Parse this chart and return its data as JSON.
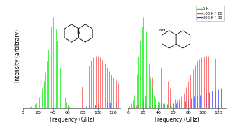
{
  "xlabel": "Frequency (GHz)",
  "ylabel": "Intensity (arbitrary)",
  "legend_labels": [
    "5 K",
    "100 K * 20",
    "300 K * 80"
  ],
  "legend_colors": [
    "#00ee00",
    "#ff4444",
    "#3333ff"
  ],
  "background_color": "#ffffff",
  "mol1_green_freqs": [
    2,
    4,
    6,
    8,
    10,
    12,
    14,
    16,
    18,
    20,
    22,
    24,
    26,
    28,
    30,
    32,
    34,
    36,
    38,
    40,
    42,
    44,
    46,
    48,
    50,
    52,
    54,
    56,
    58,
    60,
    62,
    64,
    66
  ],
  "mol1_green_ints": [
    0.005,
    0.007,
    0.01,
    0.013,
    0.018,
    0.025,
    0.035,
    0.048,
    0.065,
    0.085,
    0.12,
    0.16,
    0.22,
    0.3,
    0.4,
    0.52,
    0.65,
    0.78,
    0.9,
    1.0,
    0.97,
    0.88,
    0.75,
    0.6,
    0.45,
    0.31,
    0.2,
    0.12,
    0.07,
    0.04,
    0.02,
    0.01,
    0.005
  ],
  "mol1_red_freqs": [
    67,
    70,
    73,
    76,
    79,
    82,
    85,
    88,
    91,
    94,
    97,
    100,
    103,
    106,
    109,
    112,
    115,
    118,
    121,
    124,
    127
  ],
  "mol1_red_ints": [
    0.03,
    0.06,
    0.11,
    0.17,
    0.24,
    0.32,
    0.4,
    0.47,
    0.52,
    0.56,
    0.58,
    0.58,
    0.56,
    0.53,
    0.49,
    0.45,
    0.41,
    0.37,
    0.34,
    0.31,
    0.28
  ],
  "mol1_blue_freqs": [
    72,
    76,
    80,
    84,
    88,
    92,
    96,
    100,
    104,
    108,
    112,
    116,
    120,
    124
  ],
  "mol1_blue_ints": [
    0.01,
    0.015,
    0.02,
    0.025,
    0.03,
    0.035,
    0.04,
    0.045,
    0.05,
    0.055,
    0.06,
    0.065,
    0.07,
    0.07
  ],
  "mol2_green_freqs": [
    2,
    4,
    6,
    8,
    10,
    12,
    14,
    16,
    18,
    20,
    22,
    24,
    26,
    28,
    30,
    32,
    34,
    36,
    38,
    40,
    42,
    44,
    46,
    48,
    50,
    52,
    54,
    56,
    58,
    60,
    62
  ],
  "mol2_green_ints": [
    0.02,
    0.05,
    0.09,
    0.15,
    0.24,
    0.38,
    0.57,
    0.75,
    0.9,
    1.0,
    0.97,
    0.85,
    0.68,
    0.5,
    0.35,
    0.23,
    0.15,
    0.11,
    0.09,
    0.08,
    0.07,
    0.06,
    0.05,
    0.05,
    0.04,
    0.04,
    0.035,
    0.03,
    0.025,
    0.02,
    0.015
  ],
  "mol2_red_freqs": [
    2,
    5,
    8,
    11,
    14,
    17,
    20,
    23,
    26,
    29,
    32,
    35,
    38,
    41,
    44,
    47,
    50,
    53,
    56,
    59,
    62,
    65,
    68,
    71,
    74,
    77,
    80,
    83,
    86,
    89,
    92,
    95,
    98,
    101,
    104,
    107,
    110,
    113,
    116,
    119,
    122,
    125
  ],
  "mol2_red_ints": [
    0.01,
    0.015,
    0.02,
    0.03,
    0.04,
    0.06,
    0.09,
    0.14,
    0.2,
    0.28,
    0.35,
    0.4,
    0.44,
    0.46,
    0.45,
    0.42,
    0.37,
    0.3,
    0.22,
    0.15,
    0.1,
    0.09,
    0.1,
    0.13,
    0.17,
    0.23,
    0.3,
    0.37,
    0.43,
    0.48,
    0.52,
    0.54,
    0.56,
    0.57,
    0.58,
    0.58,
    0.57,
    0.56,
    0.55,
    0.54,
    0.53,
    0.52
  ],
  "mol2_blue_freqs": [
    8,
    12,
    16,
    20,
    24,
    28,
    32,
    36,
    40,
    44,
    48,
    52,
    56,
    60,
    64,
    68,
    72,
    76,
    80,
    84,
    88,
    92,
    96,
    100,
    104,
    108,
    112,
    116,
    120,
    124
  ],
  "mol2_blue_ints": [
    0.005,
    0.008,
    0.01,
    0.015,
    0.02,
    0.025,
    0.03,
    0.035,
    0.04,
    0.04,
    0.045,
    0.045,
    0.05,
    0.05,
    0.055,
    0.06,
    0.07,
    0.08,
    0.1,
    0.11,
    0.13,
    0.14,
    0.15,
    0.16,
    0.17,
    0.18,
    0.19,
    0.2,
    0.21,
    0.22
  ]
}
